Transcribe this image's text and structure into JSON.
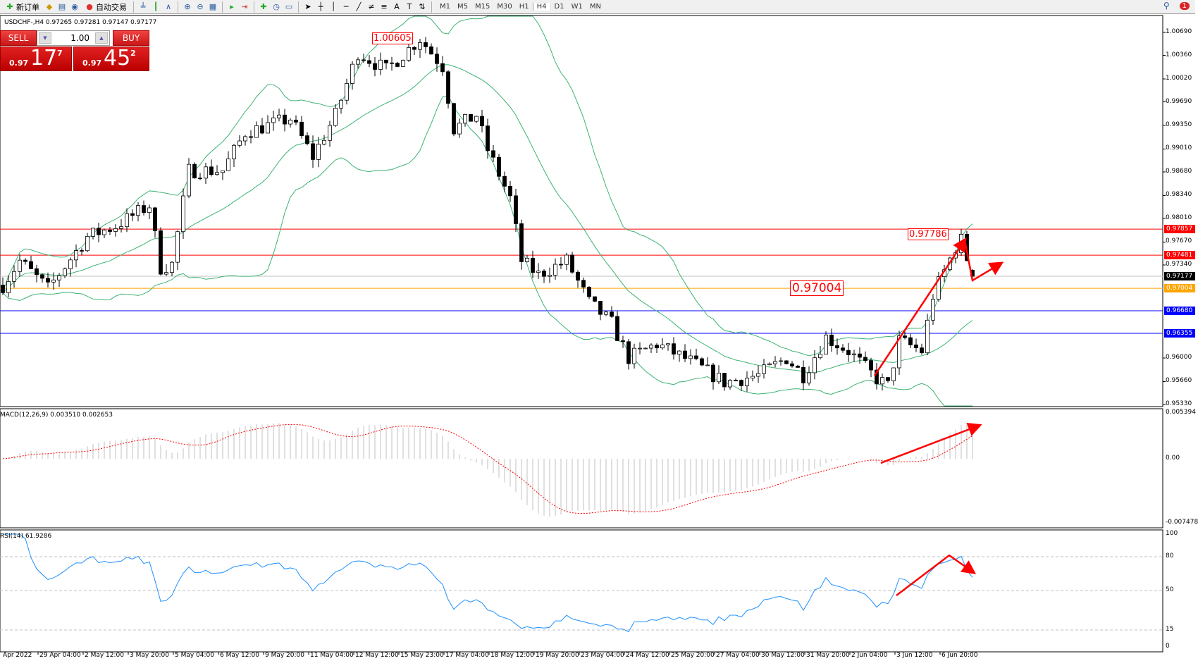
{
  "toolbar": {
    "new_order": "新订单",
    "auto_trading": "自动交易",
    "timeframes": [
      "M1",
      "M5",
      "M15",
      "M30",
      "H1",
      "H4",
      "D1",
      "W1",
      "MN"
    ],
    "active_timeframe": "H4",
    "notification_count": "1"
  },
  "symbol": {
    "header": "USDCHF-,H4  0.97265 0.97281 0.97147 0.97177"
  },
  "trade_panel": {
    "sell_label": "SELL",
    "buy_label": "BUY",
    "lot": "1.00",
    "sell_prefix": "0.97",
    "sell_big": "17",
    "sell_sup": "7",
    "buy_prefix": "0.97",
    "buy_big": "45",
    "buy_sup": "2"
  },
  "price_axis": {
    "labels": [
      "1.00690",
      "1.00360",
      "1.00020",
      "0.99690",
      "0.99350",
      "0.99010",
      "0.98680",
      "0.98340",
      "0.98010",
      "0.97670",
      "0.97340",
      "0.96000",
      "0.95660",
      "0.95330"
    ],
    "max": 1.0069,
    "min": 0.9533
  },
  "levels": [
    {
      "price": "0.97857",
      "color": "#ff0000"
    },
    {
      "price": "0.97481",
      "color": "#ff0000"
    },
    {
      "price": "0.97177",
      "color": "#000000",
      "line": "#c0c0c0"
    },
    {
      "price": "0.97004",
      "color": "#ffa500"
    },
    {
      "price": "0.96680",
      "color": "#0000ff"
    },
    {
      "price": "0.96355",
      "color": "#0000ff"
    }
  ],
  "annotations": {
    "high": "1.00605",
    "recent_high": "0.97786",
    "level": "0.97004"
  },
  "macd": {
    "label": "MACD(12,26,9) 0.003510 0.002653",
    "axis": [
      "0.005394",
      "0.00",
      "-0.007478"
    ]
  },
  "rsi": {
    "label": "RSI(14) 61.9286",
    "axis": [
      "100",
      "80",
      "50",
      "15",
      "0"
    ]
  },
  "time_axis": [
    "Apr 2022",
    "29 Apr 04:00",
    "2 May 12:00",
    "3 May 20:00",
    "5 May 04:00",
    "6 May 12:00",
    "9 May 20:00",
    "11 May 04:00",
    "12 May 12:00",
    "15 May 23:00",
    "17 May 04:00",
    "18 May 12:00",
    "19 May 20:00",
    "23 May 04:00",
    "24 May 12:00",
    "25 May 20:00",
    "27 May 04:00",
    "30 May 12:00",
    "31 May 20:00",
    "2 Jun 04:00",
    "3 Jun 12:00",
    "6 Jun 20:00"
  ],
  "chart_data": {
    "type": "candlestick",
    "symbol": "USDCHF-",
    "timeframe": "H4",
    "last": {
      "open": 0.97265,
      "high": 0.97281,
      "low": 0.97147,
      "close": 0.97177
    },
    "price_path": [
      [
        0,
        0.9705
      ],
      [
        3,
        0.974
      ],
      [
        8,
        0.97
      ],
      [
        15,
        0.9775
      ],
      [
        20,
        0.979
      ],
      [
        26,
        0.982
      ],
      [
        28,
        0.973
      ],
      [
        30,
        0.9735
      ],
      [
        33,
        0.987
      ],
      [
        39,
        0.987
      ],
      [
        43,
        0.9925
      ],
      [
        51,
        0.9945
      ],
      [
        55,
        0.989
      ],
      [
        59,
        0.995
      ],
      [
        63,
        1.004
      ],
      [
        68,
        1.0015
      ],
      [
        74,
        1.006
      ],
      [
        78,
        1.002
      ],
      [
        80,
        0.993
      ],
      [
        84,
        0.995
      ],
      [
        86,
        0.99
      ],
      [
        90,
        0.983
      ],
      [
        92,
        0.974
      ],
      [
        95,
        0.972
      ],
      [
        100,
        0.974
      ],
      [
        104,
        0.968
      ],
      [
        108,
        0.965
      ],
      [
        111,
        0.96
      ],
      [
        116,
        0.962
      ],
      [
        122,
        0.9595
      ],
      [
        128,
        0.9565
      ],
      [
        134,
        0.9575
      ],
      [
        139,
        0.96
      ],
      [
        142,
        0.9575
      ],
      [
        146,
        0.963
      ],
      [
        150,
        0.961
      ],
      [
        155,
        0.957
      ],
      [
        157,
        0.956
      ],
      [
        159,
        0.9625
      ],
      [
        163,
        0.961
      ],
      [
        165,
        0.969
      ],
      [
        169,
        0.976
      ],
      [
        170,
        0.977
      ],
      [
        172,
        0.97177
      ]
    ],
    "colors": {
      "bollinger": "#3cb371",
      "macd_hist": "#c0c0c0",
      "macd_signal": "#ff0000",
      "rsi": "#1e90ff",
      "arrows": "#ff0000"
    }
  }
}
